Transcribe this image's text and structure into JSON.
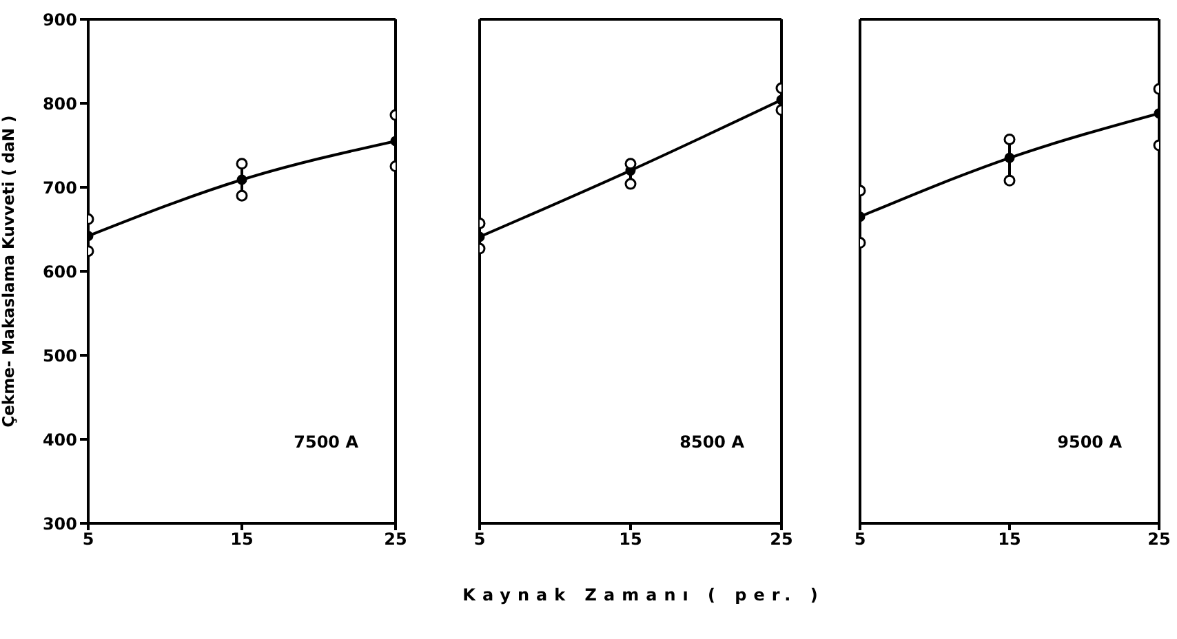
{
  "chart_data": [
    {
      "type": "line",
      "ylabel": "Çekme- Makaslama Kuvveti ( daN )",
      "x": [
        5,
        15,
        25
      ],
      "xlim": [
        5,
        25
      ],
      "xticks": [
        5,
        15,
        25
      ],
      "ylim": [
        300,
        900
      ],
      "yticks": [
        300,
        400,
        500,
        600,
        700,
        800,
        900
      ],
      "grid": false,
      "legend": false,
      "annotations": [
        "7500 A"
      ],
      "series": [
        {
          "color": "#000000",
          "marker": "circle",
          "values": [
            642,
            709,
            755
          ],
          "errors": [
            [
              624,
              662
            ],
            [
              690,
              728
            ],
            [
              725,
              786
            ]
          ]
        },
        {
          "type": "scatter",
          "color": "#000000",
          "marker": "circle",
          "values": [
            624,
            690,
            725
          ]
        },
        {
          "type": "scatter",
          "color": "#000000",
          "marker": "circle",
          "values": [
            662,
            728,
            786
          ]
        }
      ]
    },
    {
      "type": "line",
      "xlabel": "Kaynak Zamanı ( per. )",
      "x": [
        5,
        15,
        25
      ],
      "xlim": [
        5,
        25
      ],
      "xticks": [
        5,
        15,
        25
      ],
      "ylim": [
        300,
        900
      ],
      "yticks": [
        300,
        400,
        500,
        600,
        700,
        800,
        900
      ],
      "tick_labels": "x",
      "grid": false,
      "legend": false,
      "annotations": [
        "8500 A"
      ],
      "series": [
        {
          "color": "#000000",
          "marker": "circle",
          "values": [
            641,
            720,
            804
          ],
          "errors": [
            [
              627,
              657
            ],
            [
              704,
              728
            ],
            [
              792,
              818
            ]
          ]
        },
        {
          "type": "scatter",
          "color": "#000000",
          "marker": "circle",
          "values": [
            627,
            704,
            792
          ]
        },
        {
          "type": "scatter",
          "color": "#000000",
          "marker": "circle",
          "values": [
            657,
            728,
            818
          ]
        }
      ]
    },
    {
      "type": "line",
      "x": [
        5,
        15,
        25
      ],
      "xlim": [
        5,
        25
      ],
      "xticks": [
        5,
        15,
        25
      ],
      "ylim": [
        300,
        900
      ],
      "yticks": [
        300,
        400,
        500,
        600,
        700,
        800,
        900
      ],
      "tick_labels": "x",
      "grid": false,
      "legend": false,
      "annotations": [
        "9500 A"
      ],
      "series": [
        {
          "color": "#000000",
          "marker": "circle",
          "values": [
            665,
            735,
            788
          ],
          "errors": [
            [
              634,
              696
            ],
            [
              708,
              757
            ],
            [
              750,
              817
            ]
          ]
        },
        {
          "type": "scatter",
          "color": "#000000",
          "marker": "circle",
          "values": [
            634,
            708,
            750
          ]
        },
        {
          "type": "scatter",
          "color": "#000000",
          "marker": "circle",
          "values": [
            696,
            757,
            817
          ]
        }
      ]
    }
  ]
}
